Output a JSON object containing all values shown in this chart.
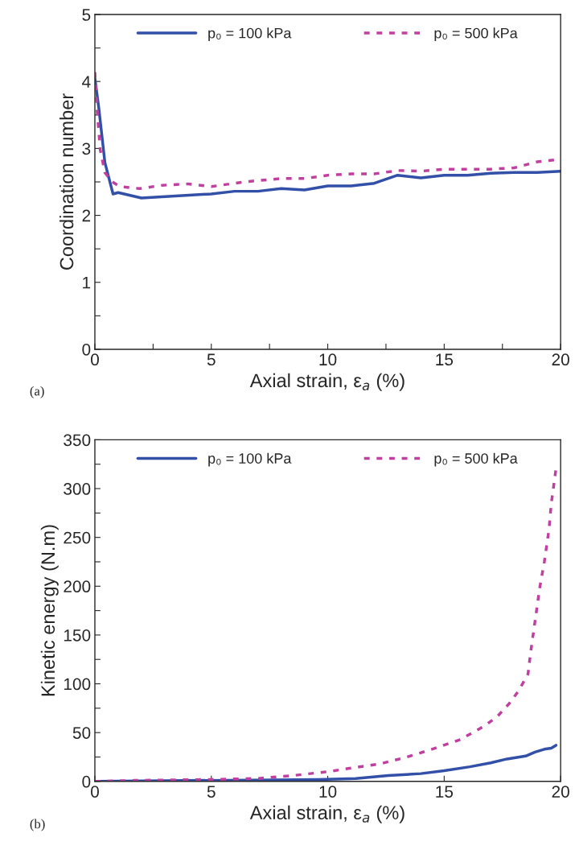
{
  "chart_data": [
    {
      "type": "line",
      "xlabel": "Axial strain, ε$_{a}$ (%)",
      "ylabel": "Coordination number",
      "annotations": [
        "(a)"
      ],
      "legend": "top",
      "grid": false,
      "xlim": [
        0,
        20
      ],
      "xticks": [
        0,
        {
          "value": 2.5,
          "label": null
        },
        5,
        {
          "value": 7.5,
          "label": null
        },
        10,
        {
          "value": 12.5,
          "label": null
        },
        15,
        {
          "value": 17.5,
          "label": null
        },
        20
      ],
      "ylim": [
        0,
        5
      ],
      "yticks": [
        0,
        {
          "value": 0.5,
          "label": null
        },
        1,
        {
          "value": 1.5,
          "label": null
        },
        2,
        {
          "value": 2.5,
          "label": null
        },
        3,
        {
          "value": 3.5,
          "label": null
        },
        4,
        {
          "value": 4.5,
          "label": null
        },
        5
      ],
      "series": [
        {
          "name": "p₀ = 100 kPa",
          "color": "#3350a8",
          "line_style": "solid",
          "x": [
            0,
            0.17,
            0.43,
            0.78,
            1.0,
            2.0,
            5.0,
            6.0,
            7.0,
            8.0,
            9.0,
            10.0,
            11.0,
            12.0,
            13.0,
            14.0,
            15.0,
            16.0,
            17.0,
            18.0,
            19.0,
            20.0
          ],
          "values": [
            4.05,
            3.6,
            2.79,
            2.32,
            2.34,
            2.26,
            2.32,
            2.36,
            2.36,
            2.4,
            2.38,
            2.44,
            2.44,
            2.48,
            2.6,
            2.56,
            2.6,
            2.6,
            2.63,
            2.64,
            2.64,
            2.66
          ]
        },
        {
          "name": "p₀ = 500 kPa",
          "color": "#c040a0",
          "line_style": "dashed",
          "x": [
            0,
            0.1,
            0.23,
            0.43,
            0.75,
            1.08,
            1.92,
            2.9,
            4.0,
            5.0,
            6.0,
            6.7,
            8.0,
            9.0,
            10.0,
            11.0,
            12.0,
            13.0,
            14.0,
            15.0,
            17.0,
            18.0,
            19.0,
            20.0
          ],
          "values": [
            4.14,
            3.55,
            2.98,
            2.64,
            2.5,
            2.43,
            2.4,
            2.45,
            2.47,
            2.43,
            2.48,
            2.51,
            2.55,
            2.55,
            2.6,
            2.62,
            2.62,
            2.67,
            2.66,
            2.69,
            2.69,
            2.71,
            2.8,
            2.84
          ]
        }
      ]
    },
    {
      "type": "line",
      "xlabel": "Axial strain, ε$_{a}$ (%)",
      "ylabel": "Kinetic energy (N.m)",
      "annotations": [
        "(b)"
      ],
      "legend": "top",
      "grid": false,
      "xlim": [
        0,
        20
      ],
      "xticks": [
        0,
        5,
        10,
        15,
        20
      ],
      "ylim": [
        0,
        350
      ],
      "yticks": [
        0,
        {
          "value": 25,
          "label": null
        },
        50,
        {
          "value": 75,
          "label": null
        },
        100,
        {
          "value": 125,
          "label": null
        },
        150,
        {
          "value": 175,
          "label": null
        },
        200,
        {
          "value": 225,
          "label": null
        },
        250,
        {
          "value": 275,
          "label": null
        },
        300,
        {
          "value": 325,
          "label": null
        },
        350
      ],
      "series": [
        {
          "name": "p₀ = 100 kPa",
          "color": "#3350a8",
          "line_style": "solid",
          "x": [
            0,
            9.6,
            11.2,
            12.6,
            14.0,
            15.0,
            16.1,
            17.0,
            17.7,
            18.5,
            18.9,
            19.3,
            19.6,
            19.8
          ],
          "values": [
            0,
            2,
            3,
            6,
            8,
            11,
            15,
            19,
            23,
            26,
            30,
            33,
            34,
            37
          ]
        },
        {
          "name": "p₀ = 500 kPa",
          "color": "#c040a0",
          "line_style": "dashed",
          "x": [
            0,
            1.7,
            5.0,
            7.0,
            8.5,
            10.0,
            11.1,
            12.25,
            13.4,
            13.95,
            14.6,
            15.7,
            16.3,
            16.8,
            17.3,
            17.8,
            18.2,
            18.6,
            18.7,
            18.9,
            19.1,
            19.3,
            19.5,
            19.6,
            19.8
          ],
          "values": [
            0,
            1,
            2,
            3,
            6,
            10,
            14,
            18,
            25,
            29,
            34,
            43,
            51,
            58,
            67,
            80,
            93,
            110,
            130,
            164,
            198,
            225,
            258,
            285,
            320
          ]
        }
      ]
    }
  ]
}
